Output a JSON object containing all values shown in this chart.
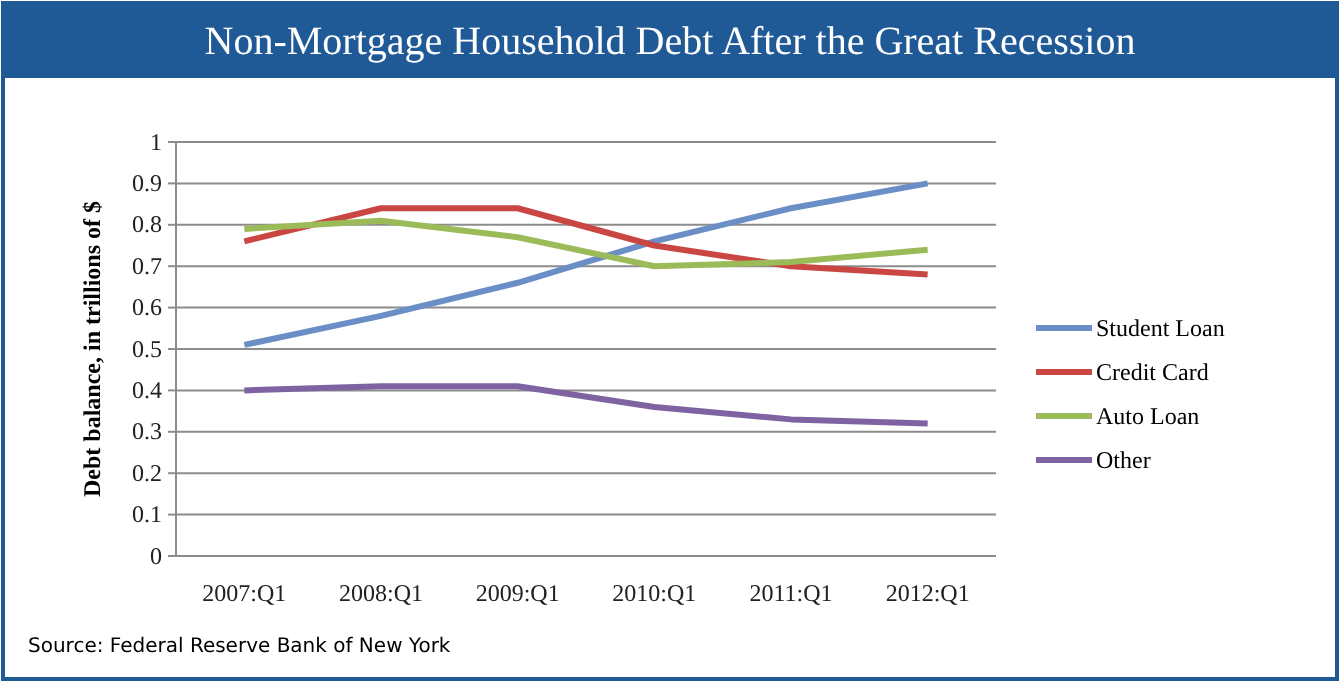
{
  "chart_data": {
    "type": "line",
    "title": "Non-Mortgage Household Debt After the Great Recession",
    "ylabel": "Debt balance, in trillions of $",
    "categories": [
      "2007:Q1",
      "2008:Q1",
      "2009:Q1",
      "2010:Q1",
      "2011:Q1",
      "2012:Q1"
    ],
    "series": [
      {
        "name": "Student Loan",
        "color": "#6a8fc6",
        "values": [
          0.51,
          0.58,
          0.66,
          0.76,
          0.84,
          0.9
        ]
      },
      {
        "name": "Credit Card",
        "color": "#c94643",
        "values": [
          0.76,
          0.84,
          0.84,
          0.75,
          0.7,
          0.68
        ]
      },
      {
        "name": "Auto Loan",
        "color": "#9bbb59",
        "values": [
          0.79,
          0.81,
          0.77,
          0.7,
          0.71,
          0.74
        ]
      },
      {
        "name": "Other",
        "color": "#7f62a2",
        "values": [
          0.4,
          0.41,
          0.41,
          0.36,
          0.33,
          0.32
        ]
      }
    ],
    "ylim": [
      0,
      1
    ],
    "yticks": [
      0,
      0.1,
      0.2,
      0.3,
      0.4,
      0.5,
      0.6,
      0.7,
      0.8,
      0.9,
      1
    ],
    "grid": "y",
    "legend": "right",
    "marker": "none",
    "line_style": "solid",
    "annotations": [
      "Source: Federal Reserve Bank of New York"
    ]
  }
}
